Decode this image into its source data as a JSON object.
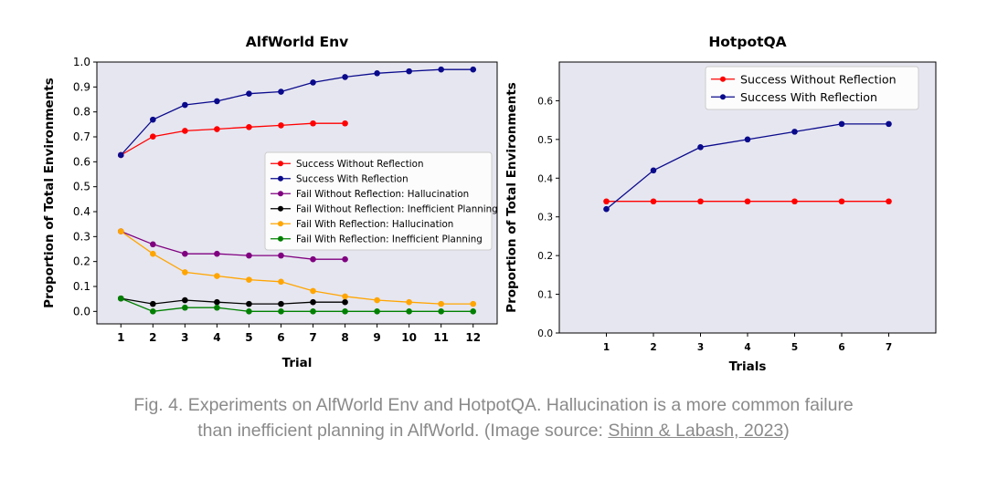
{
  "chart_data": [
    {
      "type": "line",
      "title": "AlfWorld Env",
      "xlabel": "Trial",
      "ylabel": "Proportion of Total Environments",
      "xlim": [
        0.25,
        12.75
      ],
      "ylim": [
        -0.05,
        1.0
      ],
      "xticks": [
        1,
        2,
        3,
        4,
        5,
        6,
        7,
        8,
        9,
        10,
        11,
        12
      ],
      "yticks": [
        0.0,
        0.1,
        0.2,
        0.3,
        0.4,
        0.5,
        0.6,
        0.7,
        0.8,
        0.9,
        1.0
      ],
      "grid": false,
      "legend_position": "center-right",
      "series": [
        {
          "name": "Success Without Reflection",
          "color": "#ff0000",
          "x": [
            1,
            2,
            3,
            4,
            5,
            6,
            7,
            8
          ],
          "values": [
            0.627,
            0.701,
            0.724,
            0.731,
            0.739,
            0.746,
            0.754,
            0.754
          ]
        },
        {
          "name": "Success With Reflection",
          "color": "#0a0a8c",
          "x": [
            1,
            2,
            3,
            4,
            5,
            6,
            7,
            8,
            9,
            10,
            11,
            12
          ],
          "values": [
            0.627,
            0.769,
            0.828,
            0.843,
            0.873,
            0.881,
            0.918,
            0.94,
            0.955,
            0.963,
            0.97,
            0.97
          ]
        },
        {
          "name": "Fail Without Reflection: Hallucination",
          "color": "#800080",
          "x": [
            1,
            2,
            3,
            4,
            5,
            6,
            7,
            8
          ],
          "values": [
            0.321,
            0.269,
            0.231,
            0.231,
            0.224,
            0.224,
            0.209,
            0.209
          ]
        },
        {
          "name": "Fail Without Reflection: Inefficient Planning",
          "color": "#000000",
          "x": [
            1,
            2,
            3,
            4,
            5,
            6,
            7,
            8
          ],
          "values": [
            0.052,
            0.03,
            0.045,
            0.037,
            0.03,
            0.03,
            0.037,
            0.037
          ]
        },
        {
          "name": "Fail With Reflection: Hallucination",
          "color": "#ffa500",
          "x": [
            1,
            2,
            3,
            4,
            5,
            6,
            7,
            8,
            9,
            10,
            11,
            12
          ],
          "values": [
            0.321,
            0.231,
            0.157,
            0.142,
            0.127,
            0.119,
            0.082,
            0.06,
            0.045,
            0.037,
            0.03,
            0.03
          ]
        },
        {
          "name": "Fail With Reflection: Inefficient Planning",
          "color": "#008000",
          "x": [
            1,
            2,
            3,
            4,
            5,
            6,
            7,
            8,
            9,
            10,
            11,
            12
          ],
          "values": [
            0.052,
            0.0,
            0.015,
            0.015,
            0.0,
            0.0,
            0.0,
            0.0,
            0.0,
            0.0,
            0.0,
            0.0
          ]
        }
      ]
    },
    {
      "type": "line",
      "title": "HotpotQA",
      "xlabel": "Trials",
      "ylabel": "Proportion of Total Environments",
      "xlim": [
        0.0,
        8.0
      ],
      "ylim": [
        0.0,
        0.7
      ],
      "xticks": [
        1,
        2,
        3,
        4,
        5,
        6,
        7
      ],
      "yticks": [
        0.0,
        0.1,
        0.2,
        0.3,
        0.4,
        0.5,
        0.6
      ],
      "grid": false,
      "legend_position": "top-right",
      "series": [
        {
          "name": "Success Without Reflection",
          "color": "#ff0000",
          "x": [
            1,
            2,
            3,
            4,
            5,
            6,
            7
          ],
          "values": [
            0.34,
            0.34,
            0.34,
            0.34,
            0.34,
            0.34,
            0.34
          ]
        },
        {
          "name": "Success With Reflection",
          "color": "#0a0a8c",
          "x": [
            1,
            2,
            3,
            4,
            5,
            6,
            7
          ],
          "values": [
            0.32,
            0.42,
            0.48,
            0.5,
            0.52,
            0.54,
            0.54
          ]
        }
      ]
    }
  ],
  "caption": {
    "text": "Fig. 4. Experiments on AlfWorld Env and HotpotQA. Hallucination is a more common failure than inefficient planning in AlfWorld. (Image source: ",
    "link_text": "Shinn & Labash, 2023",
    "suffix": ")"
  },
  "colors": {
    "plot_background": "#e6e6f0",
    "caption_text": "#8a8a8a"
  }
}
